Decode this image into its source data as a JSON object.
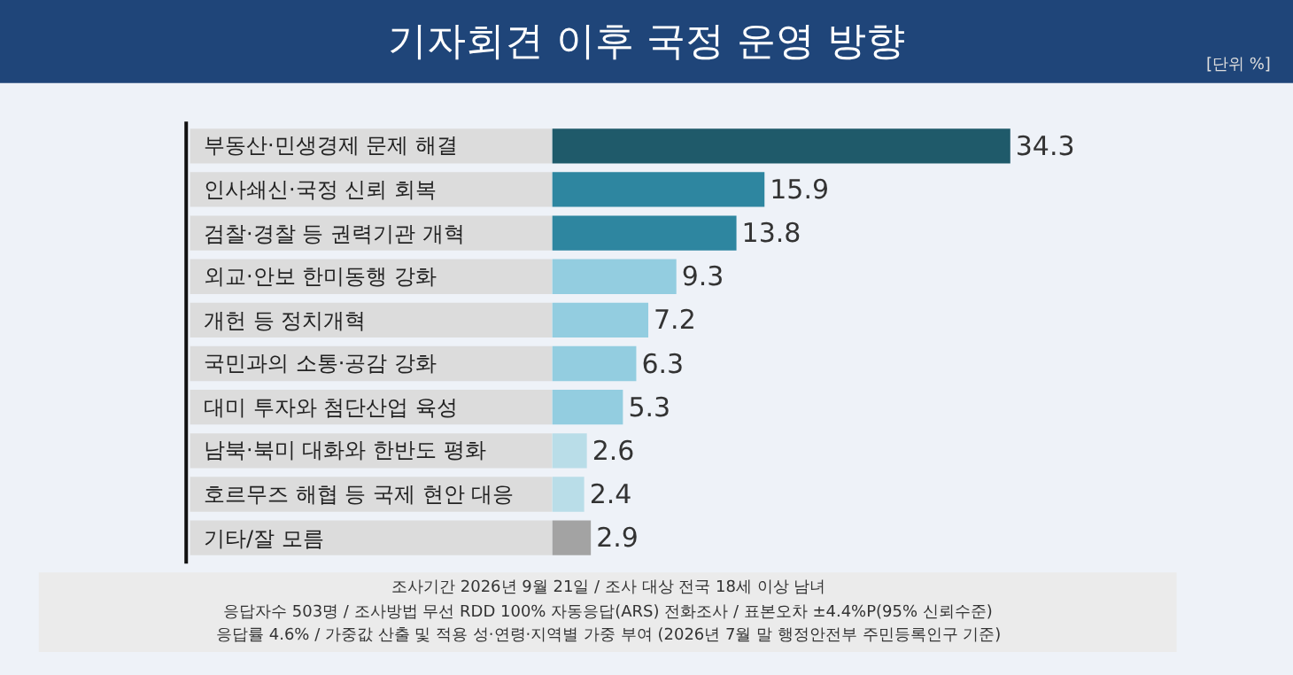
{
  "chart_data": {
    "type": "bar",
    "orientation": "horizontal",
    "title": "기자회견 이후 국정 운영 방향",
    "categories": [
      "부동산·민생경제 문제 해결",
      "인사쇄신·국정 신뢰 회복",
      "검찰·경찰 등 권력기관 개혁",
      "외교·안보 한미동행 강화",
      "개헌 등 정치개혁",
      "국민과의 소통·공감 강화",
      "대미 투자와 첨단산업 육성",
      "남북·북미 대화와 한반도 평화",
      "호르무즈 해협 등 국제 현안 대응",
      "기타/잘 모름"
    ],
    "values": [
      34.3,
      15.9,
      13.8,
      9.3,
      7.2,
      6.3,
      5.3,
      2.6,
      2.4,
      2.9
    ],
    "colors": [
      "#1f5a6a",
      "#2e86a0",
      "#2e86a0",
      "#93cde0",
      "#93cde0",
      "#93cde0",
      "#93cde0",
      "#b9dde8",
      "#b9dde8",
      "#a3a3a3"
    ],
    "data_labels": true,
    "legend": false,
    "annotations": [
      "[단위 %]",
      "조사기간 2026년 9월 21일 / 조사 대상 전국 18세 이상 남녀",
      "응답자수 503명 / 조사방법 무선 RDD 100% 자동응답(ARS) 전화조사 / 표본오차 ±4.4%P(95% 신뢰수준)",
      "응답률 4.6% / 가중값 산출 및 적용 성·연령·지역별 가중 부여 (2026년 7월 말 행정안전부 주민등록인구 기준)"
    ]
  }
}
